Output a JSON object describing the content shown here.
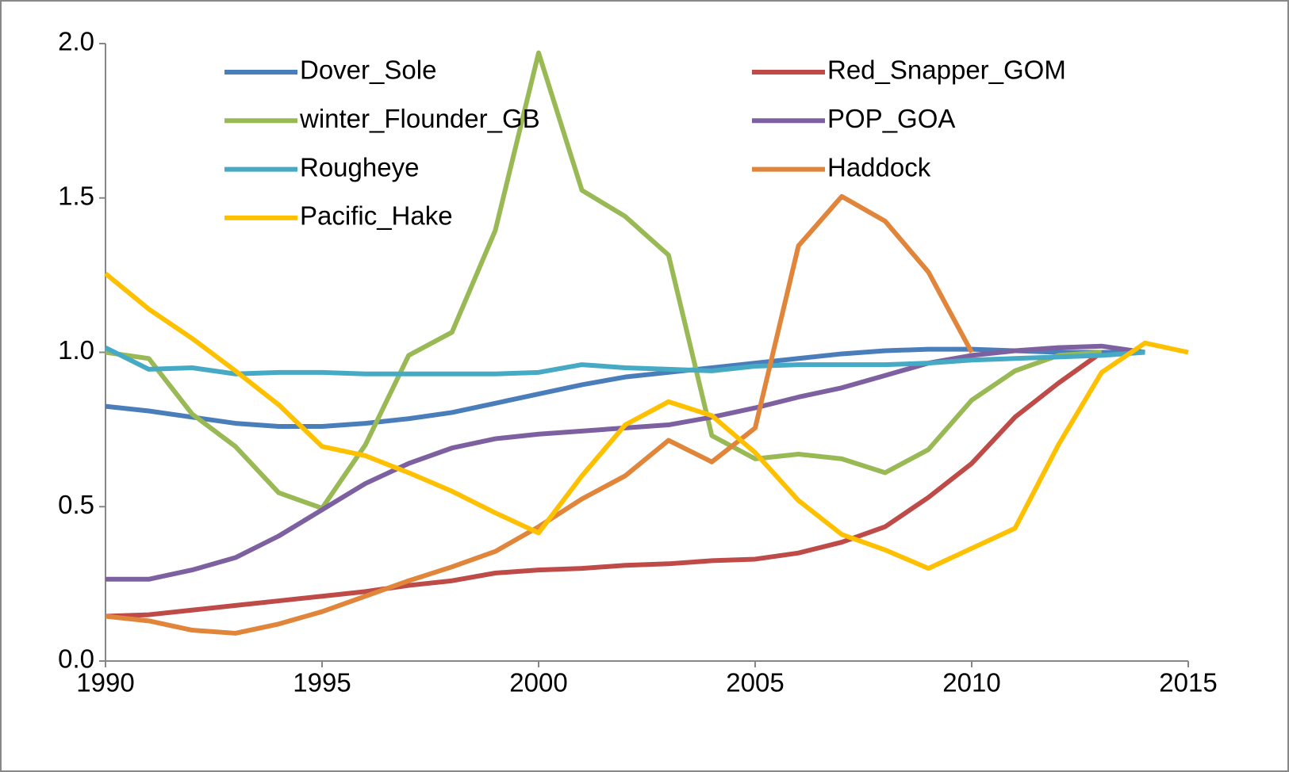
{
  "chart_data": {
    "type": "line",
    "x": [
      1990,
      1991,
      1992,
      1993,
      1994,
      1995,
      1996,
      1997,
      1998,
      1999,
      2000,
      2001,
      2002,
      2003,
      2004,
      2005,
      2006,
      2007,
      2008,
      2009,
      2010,
      2011,
      2012,
      2013,
      2014,
      2015
    ],
    "series": [
      {
        "name": "Dover_Sole",
        "color": "#4a7ebb",
        "values": [
          0.825,
          0.81,
          0.79,
          0.77,
          0.76,
          0.76,
          0.77,
          0.785,
          0.805,
          0.835,
          0.865,
          0.895,
          0.92,
          0.935,
          0.95,
          0.965,
          0.98,
          0.995,
          1.005,
          1.01,
          1.01,
          1.005,
          1.0,
          1.0,
          1.0,
          null
        ]
      },
      {
        "name": "Red_Snapper_GOM",
        "color": "#be4b48",
        "values": [
          0.145,
          0.15,
          0.165,
          0.18,
          0.195,
          0.21,
          0.225,
          0.245,
          0.26,
          0.285,
          0.295,
          0.3,
          0.31,
          0.315,
          0.325,
          0.33,
          0.35,
          0.385,
          0.435,
          0.53,
          0.64,
          0.79,
          0.9,
          1.0,
          null,
          null
        ]
      },
      {
        "name": "winter_Flounder_GB",
        "color": "#98b954",
        "values": [
          1.0,
          0.98,
          0.8,
          0.695,
          0.545,
          0.495,
          0.7,
          0.99,
          1.065,
          1.395,
          1.97,
          1.525,
          1.44,
          1.315,
          0.73,
          0.655,
          0.67,
          0.655,
          0.61,
          0.685,
          0.845,
          0.94,
          0.99,
          1.0,
          null,
          null
        ]
      },
      {
        "name": "POP_GOA",
        "color": "#7d60a0",
        "values": [
          0.265,
          0.265,
          0.295,
          0.335,
          0.405,
          0.49,
          0.575,
          0.64,
          0.69,
          0.72,
          0.735,
          0.745,
          0.755,
          0.765,
          0.79,
          0.82,
          0.855,
          0.885,
          0.925,
          0.965,
          0.99,
          1.005,
          1.015,
          1.02,
          1.0,
          null
        ]
      },
      {
        "name": "Rougheye",
        "color": "#46aac5",
        "values": [
          1.015,
          0.945,
          0.95,
          0.93,
          0.935,
          0.935,
          0.93,
          0.93,
          0.93,
          0.93,
          0.935,
          0.96,
          0.95,
          0.945,
          0.94,
          0.955,
          0.96,
          0.96,
          0.96,
          0.965,
          0.975,
          0.98,
          0.985,
          0.99,
          1.0,
          null
        ]
      },
      {
        "name": "Haddock",
        "color": "#e0853a",
        "values": [
          0.145,
          0.13,
          0.1,
          0.09,
          0.12,
          0.16,
          0.21,
          0.26,
          0.305,
          0.355,
          0.435,
          0.525,
          0.6,
          0.715,
          0.645,
          0.755,
          1.345,
          1.505,
          1.425,
          1.26,
          1.0,
          null,
          null,
          null,
          null,
          null
        ]
      },
      {
        "name": "Pacific_Hake",
        "color": "#ffc000",
        "values": [
          1.255,
          1.14,
          1.045,
          0.94,
          0.83,
          0.695,
          0.665,
          0.61,
          0.55,
          0.48,
          0.415,
          0.6,
          0.765,
          0.84,
          0.795,
          0.675,
          0.52,
          0.41,
          0.36,
          0.3,
          0.365,
          0.43,
          0.7,
          0.935,
          1.03,
          1.0
        ]
      }
    ],
    "xlim": [
      1990,
      2015
    ],
    "xticks": [
      1990,
      1995,
      2000,
      2005,
      2010,
      2015
    ],
    "ylim": [
      0,
      2
    ],
    "yticks": [
      {
        "value": 0,
        "label": "0.0"
      },
      {
        "value": 0.5,
        "label": "0.5"
      },
      {
        "value": 1,
        "label": "1.0"
      },
      {
        "value": 1.5,
        "label": "1.5"
      },
      {
        "value": 2,
        "label": "2.0"
      }
    ],
    "grid": false,
    "legend": "top"
  }
}
